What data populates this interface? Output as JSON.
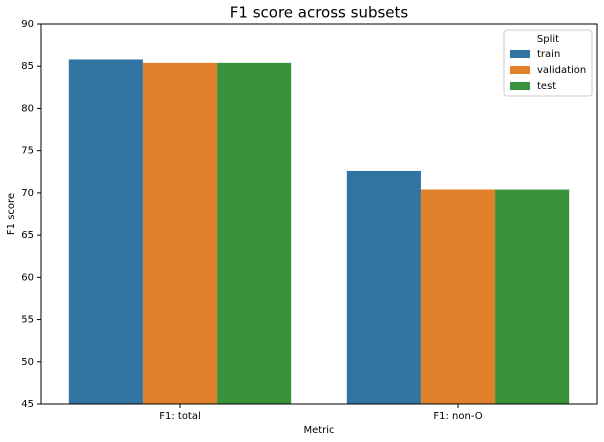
{
  "chart_data": {
    "type": "bar",
    "title": "F1 score across subsets",
    "x_label": "Metric",
    "y_label": "F1 score",
    "categories": [
      "F1: total",
      "F1: non-O"
    ],
    "series": [
      {
        "name": "train",
        "color": "#3274a1",
        "values": [
          85.8,
          72.6
        ]
      },
      {
        "name": "validation",
        "color": "#e1812c",
        "values": [
          85.4,
          70.4
        ]
      },
      {
        "name": "test",
        "color": "#3a923a",
        "values": [
          85.4,
          70.4
        ]
      }
    ],
    "legend_title": "Split",
    "legend": "upper right",
    "ylim": [
      45,
      90
    ],
    "yticks": [
      45,
      50,
      55,
      60,
      65,
      70,
      75,
      80,
      85,
      90
    ]
  }
}
